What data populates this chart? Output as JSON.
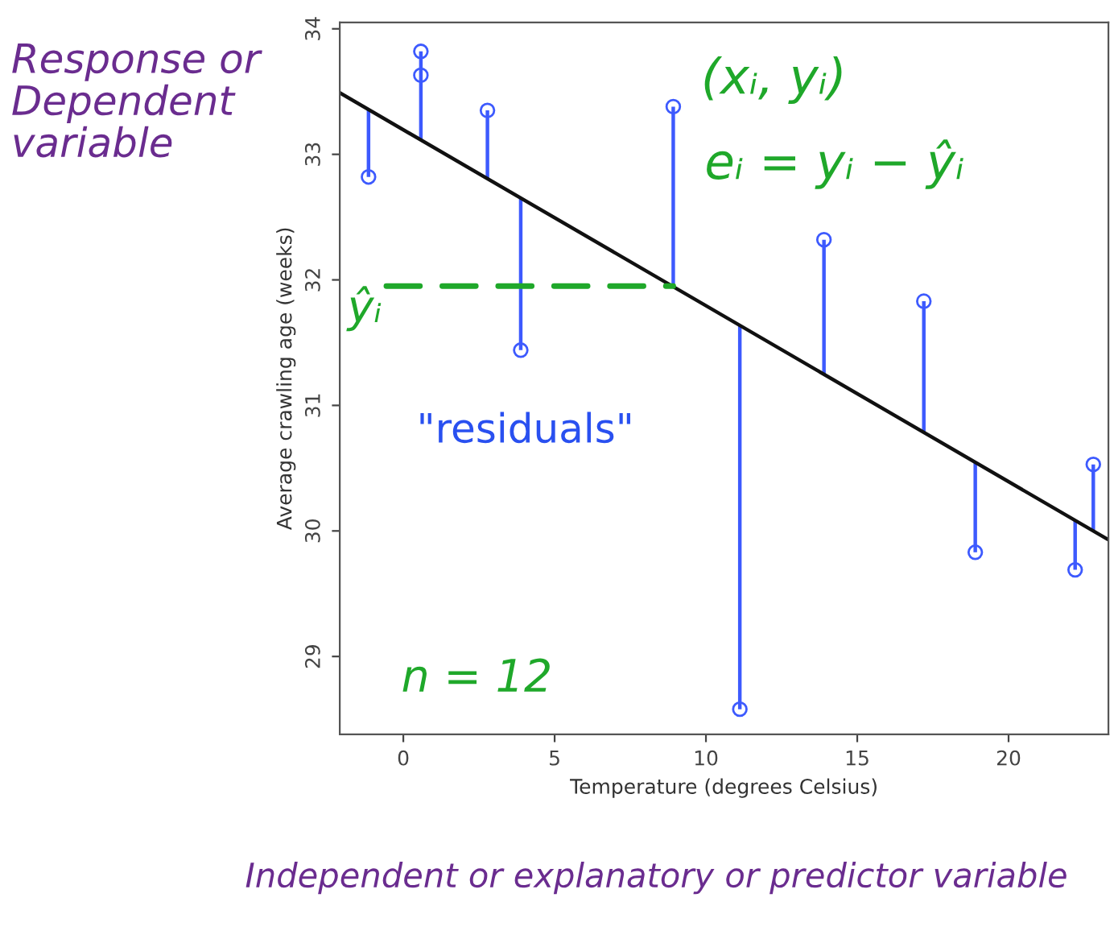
{
  "chart_data": {
    "type": "scatter",
    "xlabel": "Temperature (degrees Celsius)",
    "ylabel": "Average crawling age (weeks)",
    "xlim": [
      -2.1,
      23.3
    ],
    "ylim": [
      28.38,
      34.05
    ],
    "xticks": [
      0,
      5,
      10,
      15,
      20
    ],
    "yticks": [
      29,
      30,
      31,
      32,
      33,
      34
    ],
    "marker": "circle",
    "grid": false,
    "legend": false,
    "series": [
      {
        "color": "#3d5afe",
        "x": [
          -1.15,
          0.58,
          0.58,
          2.78,
          3.88,
          8.92,
          11.12,
          13.9,
          17.2,
          18.9,
          22.2,
          22.8
        ],
        "values": [
          32.82,
          33.82,
          33.63,
          33.35,
          31.44,
          33.38,
          28.58,
          32.32,
          31.83,
          29.83,
          29.69,
          30.53
        ],
        "errors": [
          [
            32.82,
            33.36
          ],
          [
            33.11,
            33.82
          ],
          null,
          [
            32.81,
            33.35
          ],
          [
            31.44,
            32.65
          ],
          [
            31.95,
            33.38
          ],
          [
            28.58,
            31.64
          ],
          [
            31.25,
            32.32
          ],
          [
            30.78,
            31.83
          ],
          [
            29.83,
            30.54
          ],
          [
            29.69,
            30.08
          ],
          [
            30.0,
            30.53
          ]
        ]
      },
      {
        "type": "line",
        "marker": "none",
        "color": "#111111",
        "x": [
          -2.1,
          23.3
        ],
        "values": [
          33.49,
          29.93
        ]
      }
    ],
    "annotations": [
      "Response or Dependent variable",
      "(xᵢ, yᵢ)",
      {
        "text": "eᵢ = yᵢ − ŷᵢ",
        "x": 8.92,
        "y": 32.6
      },
      {
        "text": "ŷᵢ",
        "x": 8.92,
        "y": 31.95
      },
      "\"residuals\"",
      "n = 12",
      "Independent or explanatory or predictor variable"
    ]
  }
}
